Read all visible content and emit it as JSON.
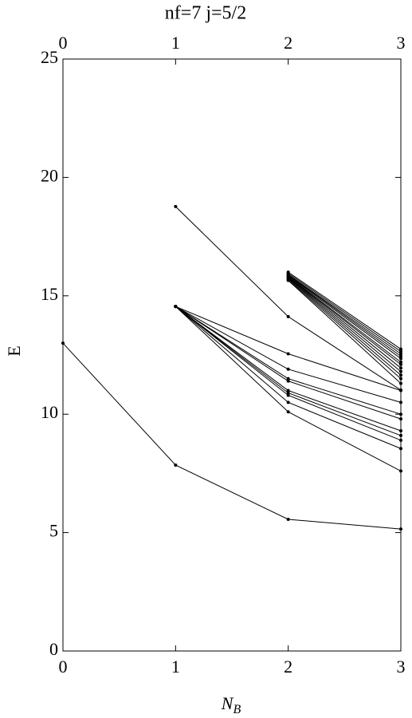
{
  "chart_data": {
    "type": "line",
    "title": "nf=7   j=5/2",
    "xlabel": "N",
    "xlabel_sub": "B",
    "ylabel": "E",
    "x": [
      0,
      1,
      2,
      3
    ],
    "xlim": [
      0,
      3
    ],
    "xticks": [
      0,
      1,
      2,
      3
    ],
    "ylim": [
      0,
      25
    ],
    "yticks": [
      0,
      5,
      10,
      15,
      20,
      25
    ],
    "color": "#000000",
    "grid": false,
    "series": [
      {
        "values": [
          13.0,
          7.85,
          5.56,
          5.15
        ]
      },
      {
        "values": [
          null,
          18.77,
          14.12,
          11.02
        ]
      },
      {
        "values": [
          null,
          14.55,
          12.55,
          11.0
        ]
      },
      {
        "values": [
          null,
          14.55,
          11.9,
          10.5
        ]
      },
      {
        "values": [
          null,
          14.55,
          11.5,
          10.0
        ]
      },
      {
        "values": [
          null,
          14.55,
          11.4,
          9.8
        ]
      },
      {
        "values": [
          null,
          14.55,
          11.0,
          9.3
        ]
      },
      {
        "values": [
          null,
          14.55,
          10.9,
          9.1
        ]
      },
      {
        "values": [
          null,
          14.55,
          10.8,
          8.9
        ]
      },
      {
        "values": [
          null,
          14.55,
          10.5,
          8.55
        ]
      },
      {
        "values": [
          null,
          14.55,
          10.1,
          7.6
        ]
      },
      {
        "values": [
          null,
          null,
          16.0,
          12.75
        ]
      },
      {
        "values": [
          null,
          null,
          15.95,
          12.65
        ]
      },
      {
        "values": [
          null,
          null,
          15.9,
          12.55
        ]
      },
      {
        "values": [
          null,
          null,
          15.88,
          12.45
        ]
      },
      {
        "values": [
          null,
          null,
          15.85,
          12.35
        ]
      },
      {
        "values": [
          null,
          null,
          15.82,
          12.2
        ]
      },
      {
        "values": [
          null,
          null,
          15.8,
          12.1
        ]
      },
      {
        "values": [
          null,
          null,
          15.78,
          11.95
        ]
      },
      {
        "values": [
          null,
          null,
          15.75,
          11.8
        ]
      },
      {
        "values": [
          null,
          null,
          15.72,
          11.65
        ]
      },
      {
        "values": [
          null,
          null,
          15.68,
          11.5
        ]
      },
      {
        "values": [
          null,
          null,
          15.65,
          11.3
        ]
      }
    ]
  }
}
